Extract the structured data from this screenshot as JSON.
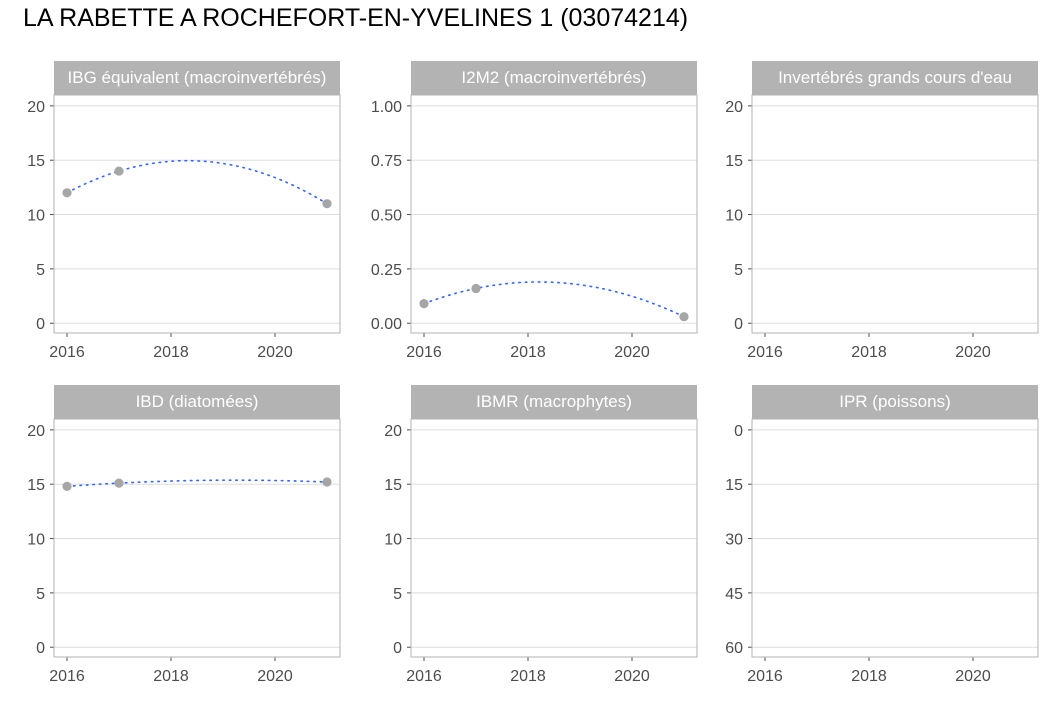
{
  "title": "LA RABETTE A ROCHEFORT-EN-YVELINES 1 (03074214)",
  "colors": {
    "strip": "#b3b3b3",
    "panel_border": "#b3b3b3",
    "grid": "#dedede",
    "point": "#a6a6a6",
    "trend": "#3366ff",
    "tick_text": "#4d4d4d"
  },
  "chart_data": [
    {
      "type": "scatter",
      "title": "IBG équivalent (macroinvertébrés)",
      "x_ticks": [
        2016,
        2018,
        2020
      ],
      "xlim": [
        2015.75,
        2021.25
      ],
      "y_ticks": [
        0,
        5,
        10,
        15,
        20
      ],
      "ylim": [
        -0.9,
        21.0
      ],
      "y_reversed": false,
      "points": [
        {
          "x": 2016,
          "y": 12
        },
        {
          "x": 2017,
          "y": 14
        },
        {
          "x": 2021,
          "y": 11
        }
      ],
      "trend": {
        "style": "dotted",
        "fit": "quadratic"
      }
    },
    {
      "type": "scatter",
      "title": "I2M2 (macroinvertébrés)",
      "x_ticks": [
        2016,
        2018,
        2020
      ],
      "xlim": [
        2015.75,
        2021.25
      ],
      "y_ticks": [
        0.0,
        0.25,
        0.5,
        0.75,
        1.0
      ],
      "y_tick_labels": [
        "0.00",
        "0.25",
        "0.50",
        "0.75",
        "1.00"
      ],
      "ylim": [
        -0.045,
        1.05
      ],
      "y_reversed": false,
      "points": [
        {
          "x": 2016,
          "y": 0.09
        },
        {
          "x": 2017,
          "y": 0.16
        },
        {
          "x": 2021,
          "y": 0.03
        }
      ],
      "trend": {
        "style": "dotted",
        "fit": "quadratic"
      }
    },
    {
      "type": "scatter",
      "title": "Invertébrés grands cours d'eau",
      "x_ticks": [
        2016,
        2018,
        2020
      ],
      "xlim": [
        2015.75,
        2021.25
      ],
      "y_ticks": [
        0,
        5,
        10,
        15,
        20
      ],
      "ylim": [
        -0.9,
        21.0
      ],
      "y_reversed": false,
      "points": [],
      "trend": null
    },
    {
      "type": "scatter",
      "title": "IBD (diatomées)",
      "x_ticks": [
        2016,
        2018,
        2020
      ],
      "xlim": [
        2015.75,
        2021.25
      ],
      "y_ticks": [
        0,
        5,
        10,
        15,
        20
      ],
      "ylim": [
        -0.9,
        21.0
      ],
      "y_reversed": false,
      "points": [
        {
          "x": 2016,
          "y": 14.8
        },
        {
          "x": 2017,
          "y": 15.1
        },
        {
          "x": 2021,
          "y": 15.2
        }
      ],
      "trend": {
        "style": "dotted",
        "fit": "quadratic"
      }
    },
    {
      "type": "scatter",
      "title": "IBMR (macrophytes)",
      "x_ticks": [
        2016,
        2018,
        2020
      ],
      "xlim": [
        2015.75,
        2021.25
      ],
      "y_ticks": [
        0,
        5,
        10,
        15,
        20
      ],
      "ylim": [
        -0.9,
        21.0
      ],
      "y_reversed": false,
      "points": [],
      "trend": null
    },
    {
      "type": "scatter",
      "title": "IPR (poissons)",
      "x_ticks": [
        2016,
        2018,
        2020
      ],
      "xlim": [
        2015.75,
        2021.25
      ],
      "y_ticks": [
        0,
        15,
        30,
        45,
        60
      ],
      "ylim": [
        -3.0,
        62.7
      ],
      "y_reversed": true,
      "points": [],
      "trend": null
    }
  ]
}
